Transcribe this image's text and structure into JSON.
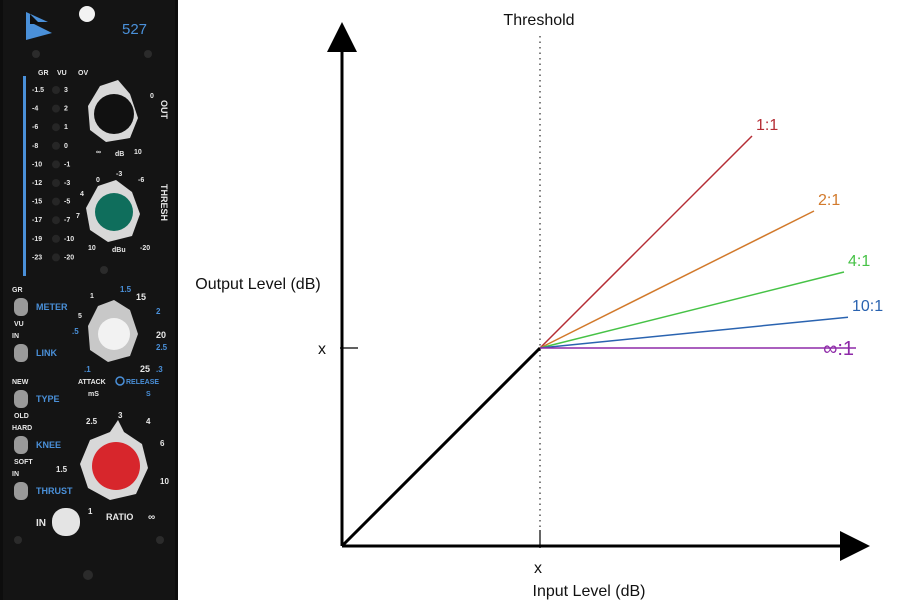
{
  "panel": {
    "model": "527",
    "colors": {
      "body": "#0d0d0d",
      "accent": "#4a90d9",
      "thresh_knob": "#0f6e5c",
      "ratio_knob": "#d7262c",
      "attack_knob": "#f2f2f2"
    },
    "meter": {
      "headers": [
        "GR",
        "VU",
        "OV"
      ],
      "left_scale": [
        "-1.5",
        "-4",
        "-6",
        "-8",
        "-10",
        "-12",
        "-15",
        "-17",
        "-19",
        "-23"
      ],
      "right_scale": [
        "3",
        "2",
        "1",
        "0",
        "-1",
        "-3",
        "-5",
        "-7",
        "-10",
        "-20"
      ]
    },
    "out": {
      "label": "OUT",
      "scale": [
        "0",
        "∞",
        "dB",
        "10"
      ]
    },
    "thresh": {
      "label": "THRESH",
      "scale": [
        "-3",
        "0",
        "-6",
        "4",
        "7",
        "10",
        "dBu",
        "-20"
      ]
    },
    "attack": {
      "scale": [
        "1",
        "1.5",
        "15",
        "5",
        "2",
        ".5",
        "20",
        "2.5",
        ".1",
        "25",
        ".3"
      ],
      "attack_label": "ATTACK",
      "release_label": "RELEASE",
      "attack_unit": "mS",
      "release_unit": "S"
    },
    "ratio": {
      "label": "RATIO",
      "scale": [
        "3",
        "2.5",
        "4",
        "6",
        "1.5",
        "10",
        "1",
        "∞"
      ]
    },
    "switches": [
      {
        "top": "GR",
        "label": "METER",
        "bottom": "VU"
      },
      {
        "top": "IN",
        "label": "LINK",
        "bottom": ""
      },
      {
        "top": "NEW",
        "label": "TYPE",
        "bottom": "OLD"
      },
      {
        "top": "HARD",
        "label": "KNEE",
        "bottom": "SOFT"
      },
      {
        "top": "IN",
        "label": "THRUST",
        "bottom": ""
      }
    ],
    "in_button": "IN"
  },
  "diagram": {
    "threshold_label": "Threshold",
    "y_axis_label": "Output Level (dB)",
    "x_axis_label": "Input Level (dB)",
    "y_marker": "x",
    "x_marker": "x",
    "lines": [
      {
        "label": "1:1",
        "ratio": 1,
        "color": "#b52d35"
      },
      {
        "label": "2:1",
        "ratio": 2,
        "color": "#d27a2c"
      },
      {
        "label": "4:1",
        "ratio": 4,
        "color": "#46c246"
      },
      {
        "label": "10:1",
        "ratio": 10,
        "color": "#2a63b0"
      },
      {
        "label": "∞:1",
        "ratio": "inf",
        "color": "#8e2aa8"
      }
    ]
  }
}
